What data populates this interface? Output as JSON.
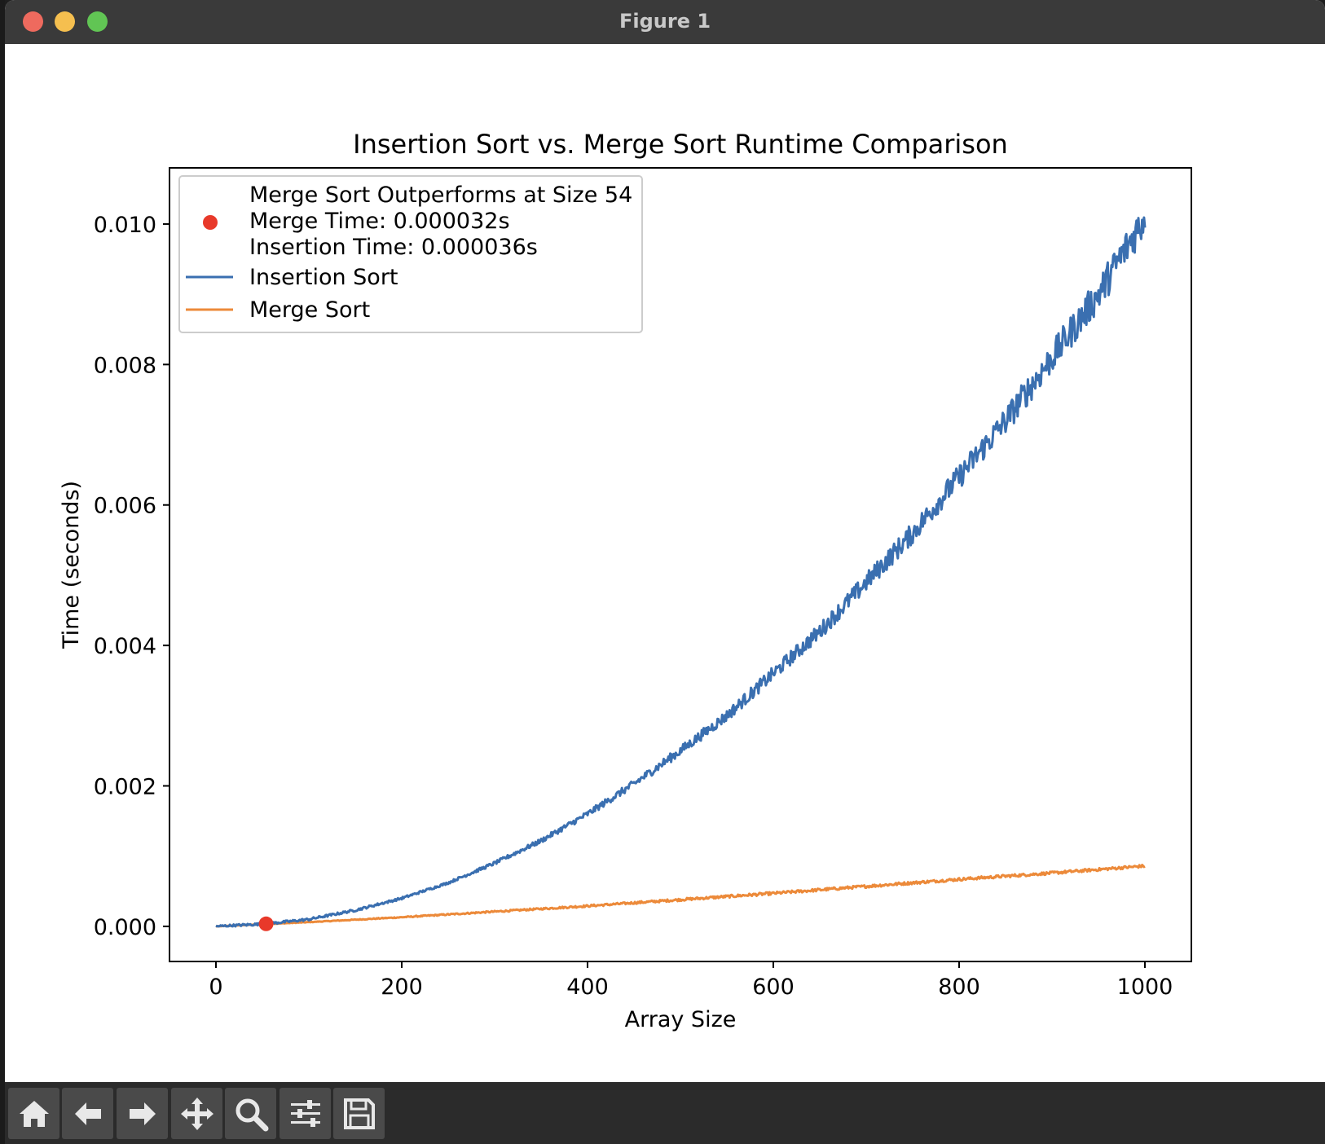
{
  "window": {
    "title": "Figure 1"
  },
  "toolbar": {
    "buttons": [
      {
        "icon": "home-icon"
      },
      {
        "icon": "back-arrow-icon"
      },
      {
        "icon": "forward-arrow-icon"
      },
      {
        "icon": "pan-icon"
      },
      {
        "icon": "zoom-icon"
      },
      {
        "icon": "configure-subplots-icon"
      },
      {
        "icon": "save-icon"
      }
    ]
  },
  "chart_data": {
    "type": "line",
    "title": "Insertion Sort vs. Merge Sort Runtime Comparison",
    "xlabel": "Array Size",
    "ylabel": "Time (seconds)",
    "xlim": [
      -50,
      1050
    ],
    "ylim": [
      -0.0005,
      0.0108
    ],
    "xticks": [
      0,
      200,
      400,
      600,
      800,
      1000
    ],
    "xtick_labels": [
      "0",
      "200",
      "400",
      "600",
      "800",
      "1000"
    ],
    "yticks": [
      0.0,
      0.002,
      0.004,
      0.006,
      0.008,
      0.01
    ],
    "ytick_labels": [
      "0.000",
      "0.002",
      "0.004",
      "0.006",
      "0.008",
      "0.010"
    ],
    "grid": false,
    "legend_position": "top-left",
    "legend": [
      {
        "kind": "marker",
        "lines": [
          "Merge Sort Outperforms at Size 54",
          "Merge Time: 0.000032s",
          "Insertion Time: 0.000036s"
        ],
        "color": "#e8392a"
      },
      {
        "kind": "line",
        "lines": [
          "Insertion Sort"
        ],
        "color": "#3a6fb0"
      },
      {
        "kind": "line",
        "lines": [
          "Merge Sort"
        ],
        "color": "#ec8a3a"
      }
    ],
    "series": [
      {
        "name": "Insertion Sort",
        "color": "#3a6fb0",
        "x": [
          0,
          54,
          100,
          150,
          200,
          250,
          300,
          350,
          400,
          450,
          500,
          550,
          600,
          650,
          700,
          750,
          800,
          850,
          900,
          950,
          1000
        ],
        "y": [
          0.0,
          3.6e-05,
          0.0001,
          0.00023,
          0.0004,
          0.00062,
          0.0009,
          0.00122,
          0.0016,
          0.00203,
          0.0025,
          0.003,
          0.0036,
          0.0042,
          0.0049,
          0.0056,
          0.0064,
          0.0072,
          0.0081,
          0.009,
          0.0101
        ],
        "noise": 0.00011
      },
      {
        "name": "Merge Sort",
        "color": "#ec8a3a",
        "x": [
          0,
          54,
          100,
          200,
          300,
          400,
          500,
          600,
          700,
          800,
          900,
          1000
        ],
        "y": [
          0.0,
          3.2e-05,
          6e-05,
          0.00013,
          0.00021,
          0.00029,
          0.00038,
          0.00047,
          0.00057,
          0.00067,
          0.00076,
          0.00086
        ],
        "noise": 2e-05
      }
    ],
    "highlight_point": {
      "x": 54,
      "y": 3.6e-05,
      "color": "#e8392a"
    }
  }
}
